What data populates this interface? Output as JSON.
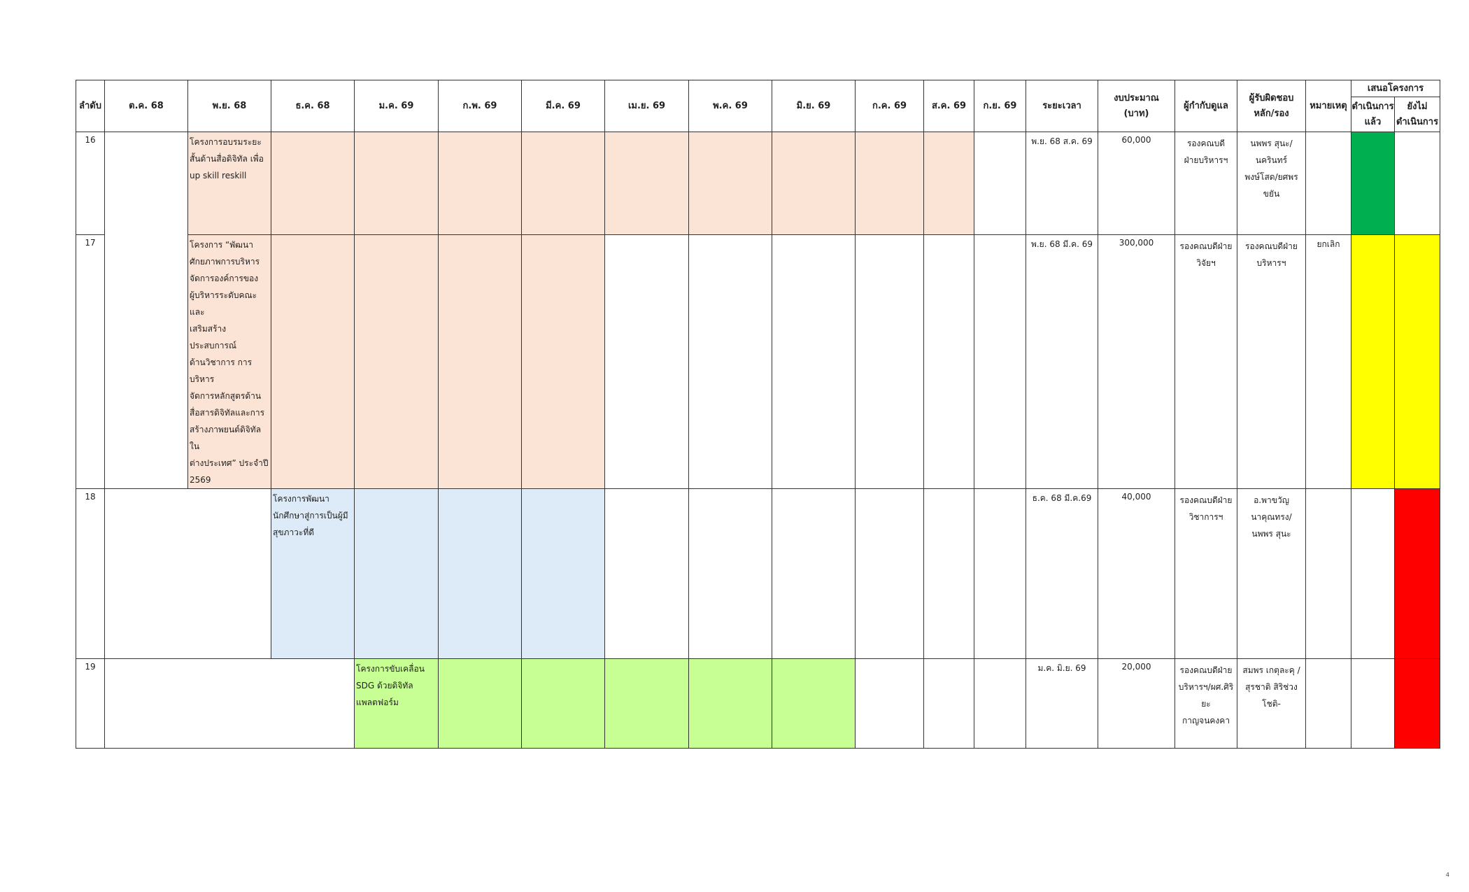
{
  "headers": {
    "seq": "ลำดับ",
    "months": [
      "ต.ค. 68",
      "พ.ย. 68",
      "ธ.ค. 68",
      "ม.ค. 69",
      "ก.พ. 69",
      "มี.ค. 69",
      "เม.ย. 69",
      "พ.ค. 69",
      "มิ.ย. 69",
      "ก.ค. 69",
      "ส.ค. 69",
      "ก.ย. 69"
    ],
    "duration": "ระยะเวลา",
    "budget_line1": "งบประมาณ",
    "budget_line2": "(บาท)",
    "supervisor": "ผู้กำกับดูแล",
    "responsible_line1": "ผู้รับผิดชอบ",
    "responsible_line2": "หลัก/รอง",
    "remark": "หมายเหตุ",
    "proposal": "เสนอโครงการ",
    "done_line1": "ดำเนินการ",
    "done_line2": "แล้ว",
    "notdone_line1": "ยังไม่",
    "notdone_line2": "ดำเนินการ"
  },
  "rows": [
    {
      "no": "16",
      "project_lines": [
        "โครงการอบรมระยะ",
        "สั้นด้านสื่อดิจิทัล เพื่อ",
        " up skill reskill"
      ],
      "duration": "พ.ย. 68   ส.ค. 69",
      "budget": "60,000",
      "supervisor_lines": [
        "รองคณบดี",
        "ฝ่ายบริหารฯ"
      ],
      "responsible_lines": [
        "นพพร สุนะ/",
        "นครินทร์",
        "พงษ์โสด/ยศพร",
        "ขยัน"
      ],
      "remark": "",
      "status": "done"
    },
    {
      "no": "17",
      "project_lines": [
        "โครงการ “พัฒนา",
        "ศักยภาพการบริหาร",
        "จัดการองค์การของ",
        "ผู้บริหารระดับคณะ และ",
        "เสริมสร้างประสบการณ์",
        "ด้านวิชาการ การบริหาร",
        "จัดการหลักสูตรด้าน",
        "สื่อสารดิจิทัลและการ",
        "สร้างภาพยนต์ดิจิทัล ใน",
        "ต่างประเทศ” ประจำปี",
        "2569"
      ],
      "duration": "พ.ย. 68  มี.ค. 69",
      "budget": "300,000",
      "supervisor_lines": [
        "รองคณบดีฝ่าย",
        "วิจัยฯ"
      ],
      "responsible_lines": [
        "รองคณบดีฝ่าย",
        "บริหารฯ"
      ],
      "remark": "ยกเลิก",
      "status": "pending"
    },
    {
      "no": "18",
      "project_lines": [
        "โครงการพัฒนา",
        "นักศึกษาสู่การเป็นผู้มี",
        "สุขภาวะที่ดี"
      ],
      "duration": "ธ.ค. 68   มี.ค.69",
      "budget": "40,000",
      "supervisor_lines": [
        "รองคณบดีฝ่าย",
        "วิชาการฯ"
      ],
      "responsible_lines": [
        "อ.พาขวัญ",
        "นาคุณทรง/",
        "นพพร สุนะ"
      ],
      "remark": "",
      "status": "notdone"
    },
    {
      "no": "19",
      "project_lines": [
        "โครงการขับเคลื่อน",
        "SDG ด้วยดิจิทัล",
        "แพลตฟอร์ม"
      ],
      "duration": "ม.ค.    มิ.ย. 69",
      "budget": "20,000",
      "supervisor_lines": [
        "รองคณบดีฝ่าย",
        "บริหารฯ/ผศ.ศิริยะ",
        "กาญจนคงคา"
      ],
      "responsible_lines": [
        "สมพร เกตุละคุ /",
        "สุรชาติ สิริช่วงโชติ-"
      ],
      "remark": "",
      "status": "notdone"
    }
  ],
  "colors": {
    "peach": "#fbe3d5",
    "blue": "#dcebf7",
    "lime": "#c8ff94",
    "done_green": "#00b050",
    "pending_yellow": "#ffff00",
    "notdone_red": "#ff0000"
  },
  "page_number": "4"
}
